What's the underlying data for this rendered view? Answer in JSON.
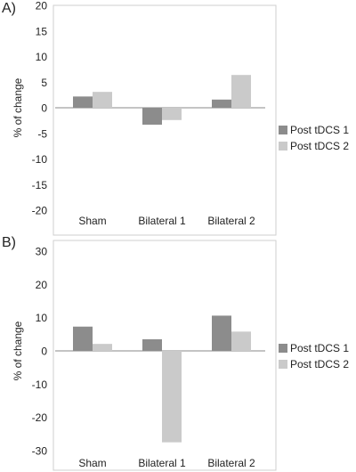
{
  "colors": {
    "series1": "#8c8c8c",
    "series2": "#cacaca",
    "axis": "#888888",
    "frame": "#cfcfcf",
    "text": "#222222"
  },
  "chart_data": [
    {
      "type": "bar",
      "panel_label": "A)",
      "categories": [
        "Sham",
        "Bilateral 1",
        "Bilateral 2"
      ],
      "series": [
        {
          "name": "Post tDCS 1",
          "values": [
            2.2,
            -3.3,
            1.6
          ]
        },
        {
          "name": "Post tDCS 2",
          "values": [
            3.1,
            -2.4,
            6.4
          ]
        }
      ],
      "ylabel": "% of change",
      "ylim": [
        -20,
        20
      ],
      "yticks": [
        20,
        15,
        10,
        5,
        0,
        -5,
        -10,
        -15,
        -20
      ],
      "legend_position": "right",
      "grid": false
    },
    {
      "type": "bar",
      "panel_label": "B)",
      "categories": [
        "Sham",
        "Bilateral 1",
        "Bilateral 2"
      ],
      "series": [
        {
          "name": "Post tDCS 1",
          "values": [
            7.3,
            3.5,
            10.6
          ]
        },
        {
          "name": "Post tDCS 2",
          "values": [
            2.1,
            -27.5,
            5.8
          ]
        }
      ],
      "ylabel": "% of change",
      "ylim": [
        -30,
        30
      ],
      "yticks": [
        30,
        20,
        10,
        0,
        -10,
        -20,
        -30
      ],
      "legend_position": "right",
      "grid": false
    }
  ]
}
